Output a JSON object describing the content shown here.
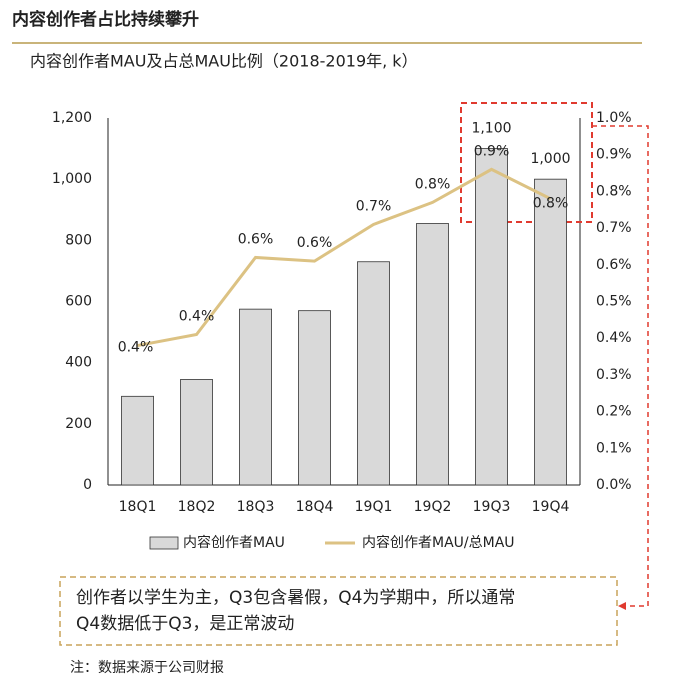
{
  "header": {
    "title": "内容创作者占比持续攀升"
  },
  "chart_data": {
    "type": "bar",
    "subtitle": "内容创作者MAU及占总MAU比例（2018-2019年, k）",
    "categories": [
      "18Q1",
      "18Q2",
      "18Q3",
      "18Q4",
      "19Q1",
      "19Q2",
      "19Q3",
      "19Q4"
    ],
    "series": [
      {
        "name": "内容创作者MAU",
        "type": "bar",
        "color": "#d9d9d9",
        "values": [
          290,
          345,
          575,
          570,
          730,
          855,
          1100,
          1000
        ],
        "value_labels": [
          null,
          null,
          null,
          null,
          null,
          null,
          "1,100",
          "1,000"
        ]
      },
      {
        "name": "内容创作者MAU/总MAU",
        "type": "line",
        "axis": "y2",
        "color": "#dcc283",
        "values": [
          0.38,
          0.41,
          0.62,
          0.61,
          0.71,
          0.77,
          0.86,
          0.78
        ],
        "value_labels": [
          "0.4%",
          "0.4%",
          "0.6%",
          "0.6%",
          "0.7%",
          "0.8%",
          "0.9%",
          "0.8%"
        ]
      }
    ],
    "ylim": [
      0,
      1200
    ],
    "yticks": [
      0,
      200,
      400,
      600,
      800,
      {
        "value": 1000,
        "label": "1,000"
      },
      {
        "value": 1200,
        "label": "1,200"
      }
    ],
    "y2lim": [
      0,
      1.0
    ],
    "y2ticks": [
      {
        "value": 0,
        "label": "0.0%"
      },
      {
        "value": 0.1,
        "label": "0.1%"
      },
      {
        "value": 0.2,
        "label": "0.2%"
      },
      {
        "value": 0.3,
        "label": "0.3%"
      },
      {
        "value": 0.4,
        "label": "0.4%"
      },
      {
        "value": 0.5,
        "label": "0.5%"
      },
      {
        "value": 0.6,
        "label": "0.6%"
      },
      {
        "value": 0.7,
        "label": "0.7%"
      },
      {
        "value": 0.8,
        "label": "0.8%"
      },
      {
        "value": 0.9,
        "label": "0.9%"
      },
      {
        "value": 1.0,
        "label": "1.0%"
      }
    ],
    "grid": false,
    "legend": "bottom"
  },
  "callout": {
    "lines": [
      "创作者以学生为主，Q3包含暑假，Q4为学期中，所以通常",
      "Q4数据低于Q3，是正常波动"
    ]
  },
  "note": "注：数据来源于公司财报"
}
